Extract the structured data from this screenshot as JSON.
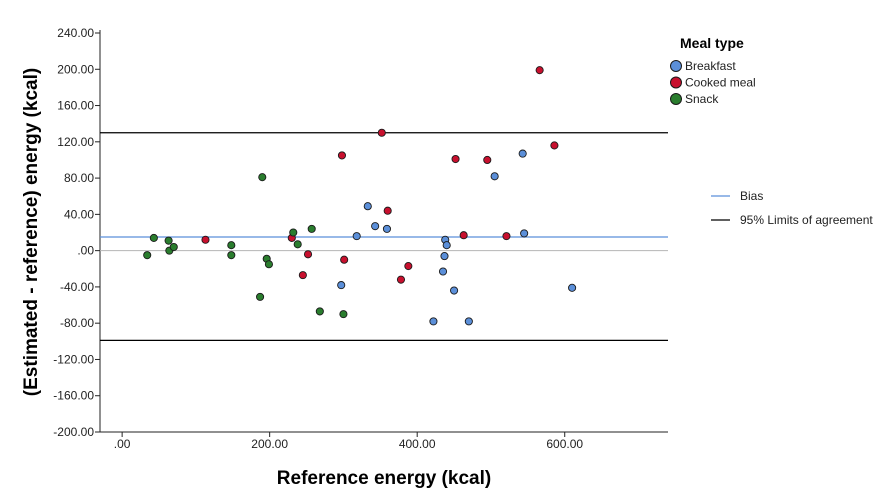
{
  "chart_data": {
    "type": "scatter",
    "xlabel": "Reference energy (kcal)",
    "ylabel": "(Estimated - reference) energy (kcal)",
    "xlim": [
      -30,
      740
    ],
    "ylim": [
      -200,
      240
    ],
    "x_ticks": [
      0,
      200,
      400,
      600
    ],
    "x_tick_labels": [
      ".00",
      "200.00",
      "400.00",
      "600.00"
    ],
    "y_ticks": [
      240,
      200,
      160,
      120,
      80,
      40,
      0,
      -40,
      -80,
      -120,
      -160,
      -200
    ],
    "y_tick_labels": [
      "240.00",
      "200.00",
      "160.00",
      "120.00",
      "80.00",
      "40.00",
      ".00",
      "-40.00",
      "-80.00",
      "-120.00",
      "-160.00",
      "-200.00"
    ],
    "grid": false,
    "zero_line": 0,
    "bias": 15,
    "loa_upper": 130,
    "loa_lower": -99,
    "legend_title": "Meal type",
    "legend_placement": "right",
    "series": [
      {
        "name": "Breakfast",
        "color": "#5b8fd9",
        "points": [
          [
            333,
            49
          ],
          [
            343,
            27
          ],
          [
            359,
            24
          ],
          [
            318,
            16
          ],
          [
            297,
            -38
          ],
          [
            438,
            12
          ],
          [
            440,
            6
          ],
          [
            437,
            -6
          ],
          [
            435,
            -23
          ],
          [
            450,
            -44
          ],
          [
            422,
            -78
          ],
          [
            470,
            -78
          ],
          [
            505,
            82
          ],
          [
            543,
            107
          ],
          [
            545,
            19
          ],
          [
            610,
            -41
          ]
        ]
      },
      {
        "name": "Cooked meal",
        "color": "#c8102e",
        "points": [
          [
            566,
            199
          ],
          [
            352,
            130
          ],
          [
            298,
            105
          ],
          [
            452,
            101
          ],
          [
            495,
            100
          ],
          [
            586,
            116
          ],
          [
            360,
            44
          ],
          [
            463,
            17
          ],
          [
            521,
            16
          ],
          [
            113,
            12
          ],
          [
            230,
            14
          ],
          [
            252,
            -4
          ],
          [
            245,
            -27
          ],
          [
            301,
            -10
          ],
          [
            388,
            -17
          ],
          [
            378,
            -32
          ]
        ]
      },
      {
        "name": "Snack",
        "color": "#2a7d2e",
        "points": [
          [
            190,
            81
          ],
          [
            43,
            14
          ],
          [
            63,
            11
          ],
          [
            64,
            0
          ],
          [
            70,
            4
          ],
          [
            34,
            -5
          ],
          [
            148,
            6
          ],
          [
            148,
            -5
          ],
          [
            196,
            -9
          ],
          [
            199,
            -15
          ],
          [
            232,
            20
          ],
          [
            238,
            7
          ],
          [
            257,
            24
          ],
          [
            187,
            -51
          ],
          [
            268,
            -67
          ],
          [
            300,
            -70
          ]
        ]
      }
    ],
    "lines_legend": [
      {
        "name": "Bias",
        "color": "#5b8fd9"
      },
      {
        "name": "95% Limits of agreement",
        "color": "#000000"
      }
    ]
  }
}
